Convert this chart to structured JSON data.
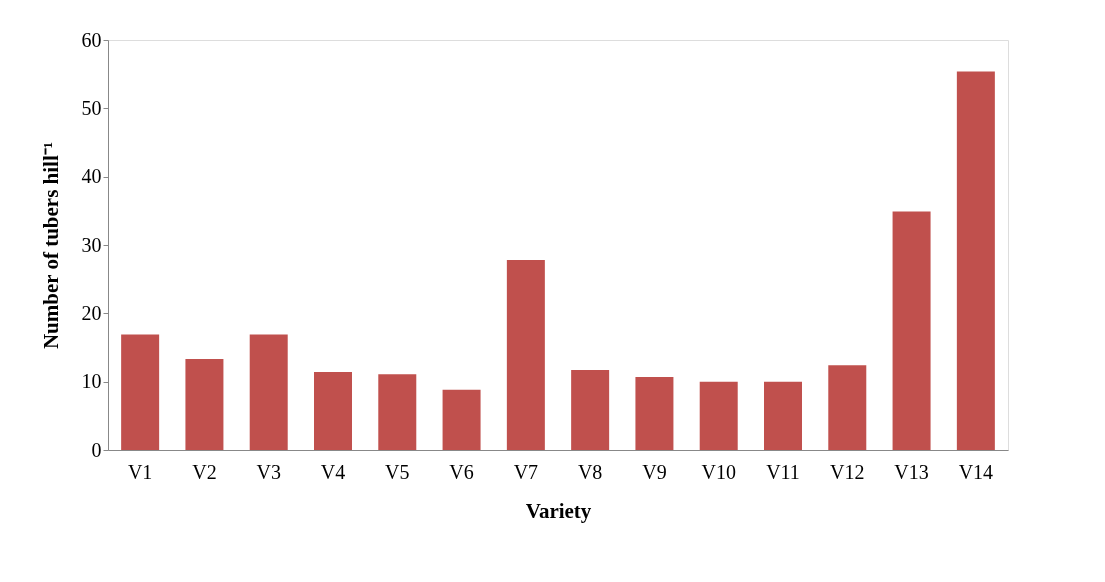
{
  "chart_data": {
    "type": "bar",
    "xlabel": "Variety",
    "ylabel": "Number of tubers hill⁻¹",
    "categories": [
      "V1",
      "V2",
      "V3",
      "V4",
      "V5",
      "V6",
      "V7",
      "V8",
      "V9",
      "V10",
      "V11",
      "V12",
      "V13",
      "V14"
    ],
    "values": [
      16.9,
      13.3,
      16.9,
      11.4,
      11.1,
      8.8,
      27.8,
      11.7,
      10.7,
      10.0,
      10.0,
      12.4,
      34.9,
      55.4
    ],
    "color": "#c0504d",
    "ylim": [
      0,
      60
    ],
    "yticks": [
      0,
      10,
      20,
      30,
      40,
      50,
      60
    ],
    "grid": false
  }
}
